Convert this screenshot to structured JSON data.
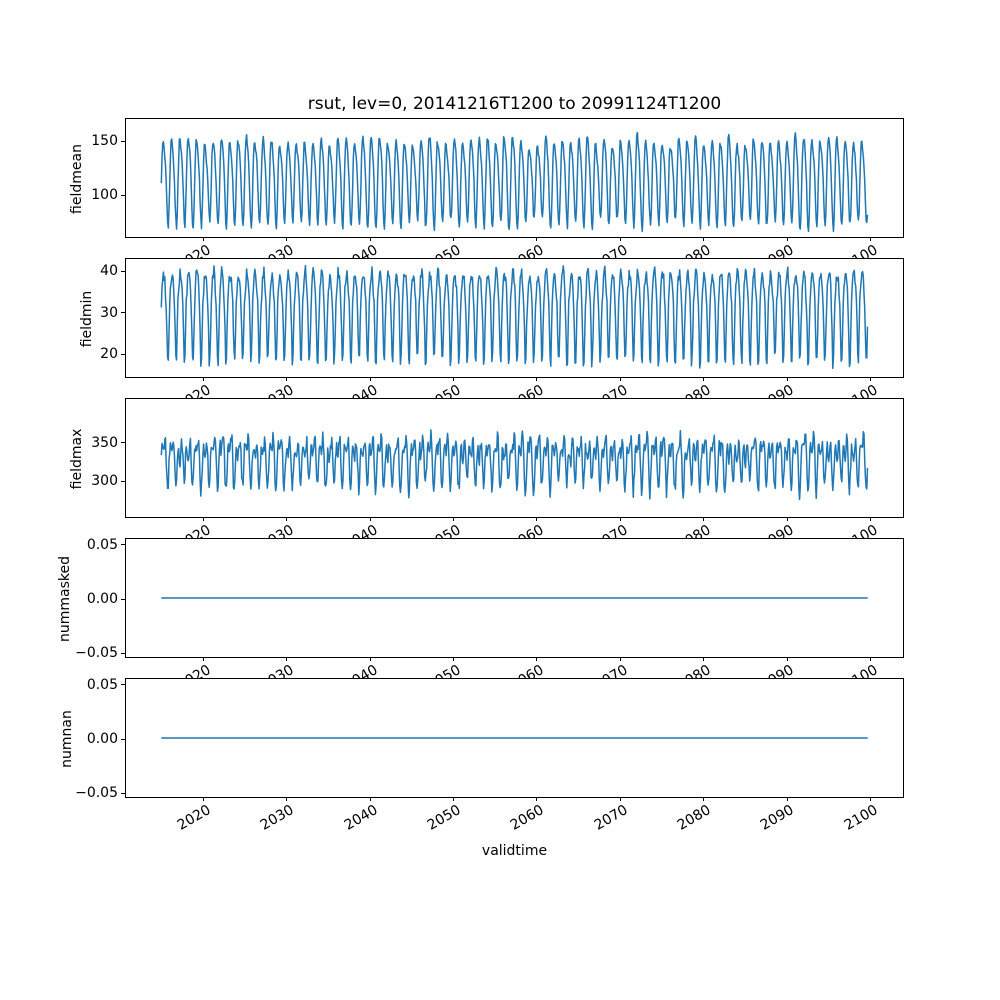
{
  "chart_data": {
    "type": "line",
    "title": "rsut, lev=0, 20141216T1200 to 20991124T1200",
    "xlabel": "validtime",
    "grid": false,
    "legend": null,
    "line_color": "#1f77b4",
    "line_width": 1.5,
    "background_color": "#ffffff",
    "x_axis": {
      "xlim": [
        2010.71,
        2104.15
      ],
      "xticks": [
        2020,
        2030,
        2040,
        2050,
        2060,
        2070,
        2080,
        2090,
        2100
      ],
      "tick_label_rotation_deg": 30
    },
    "x_start": 2014.96,
    "x_end": 2099.9,
    "samples_per_year": 12,
    "panels": [
      {
        "ylabel": "fieldmean",
        "ylim": [
          59.3,
          170.4
        ],
        "yticks": [
          {
            "v": 100,
            "label": "100"
          },
          {
            "v": 150,
            "label": "150"
          }
        ],
        "data_range": [
          64.5,
          165.4
        ],
        "pattern": "dense seasonal oscillation, roughly annual cycle with varying peak amplitude",
        "synth": {
          "base": 115,
          "amp": 38,
          "amp2": 8,
          "phase2": 0.8,
          "dip": 0,
          "noise": 3.2,
          "amp_jitter": 0.16,
          "seed": 11
        }
      },
      {
        "ylabel": "fieldmin",
        "ylim": [
          14.0,
          42.9
        ],
        "yticks": [
          {
            "v": 20,
            "label": "20"
          },
          {
            "v": 30,
            "label": "30"
          },
          {
            "v": 40,
            "label": "40"
          }
        ],
        "data_range": [
          15.3,
          41.6
        ],
        "pattern": "values mostly 32-41 with sharp annual dips to 15-20",
        "synth": {
          "base": 33.5,
          "amp": 6.2,
          "amp2": 0,
          "phase2": 0,
          "dip": 10.5,
          "noise": 1.5,
          "amp_jitter": 0.12,
          "seed": 22
        }
      },
      {
        "ylabel": "fieldmax",
        "ylim": [
          250.6,
          407.1
        ],
        "yticks": [
          {
            "v": 300,
            "label": "300"
          },
          {
            "v": 350,
            "label": "350"
          }
        ],
        "data_range": [
          258,
          399
        ],
        "pattern": "dense band around 310-345 with spikes up to ~395 and down to ~265",
        "synth": {
          "base": 328,
          "amp": 22,
          "amp2": 17,
          "phase2": 2.1,
          "dip": 0,
          "noise": 9,
          "amp_jitter": 0.4,
          "seed": 33
        }
      },
      {
        "ylabel": "nummasked",
        "ylim": [
          -0.0555,
          0.0555
        ],
        "yticks": [
          {
            "v": -0.05,
            "label": "−0.05"
          },
          {
            "v": 0,
            "label": "0.00"
          },
          {
            "v": 0.05,
            "label": "0.05"
          }
        ],
        "constant": 0,
        "pattern": "flat line at 0 for entire period"
      },
      {
        "ylabel": "numnan",
        "ylim": [
          -0.0555,
          0.0555
        ],
        "yticks": [
          {
            "v": -0.05,
            "label": "−0.05"
          },
          {
            "v": 0,
            "label": "0.00"
          },
          {
            "v": 0.05,
            "label": "0.05"
          }
        ],
        "constant": 0,
        "pattern": "flat line at 0 for entire period"
      }
    ]
  }
}
